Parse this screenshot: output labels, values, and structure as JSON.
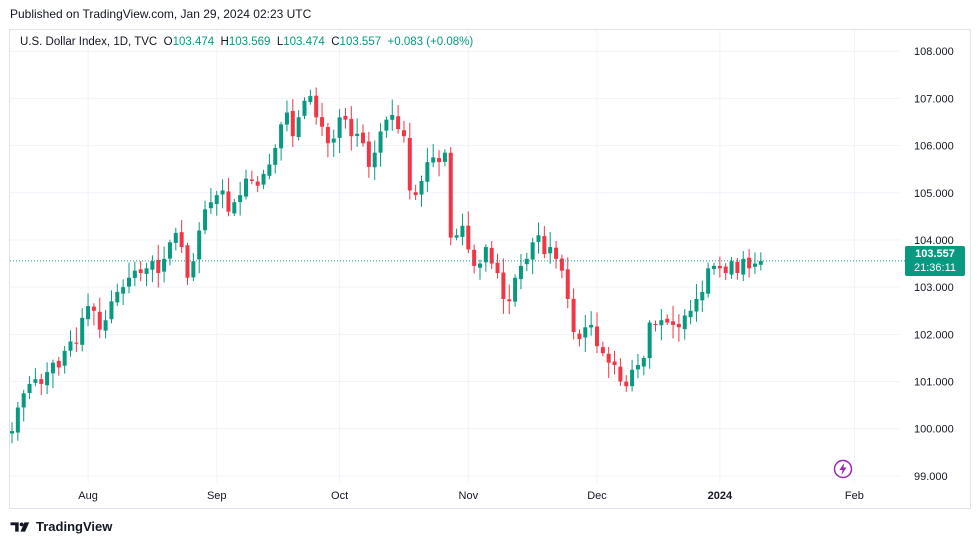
{
  "published": "Published on TradingView.com, Jan 29, 2024 02:23 UTC",
  "legend": {
    "symbol": "U.S. Dollar Index, 1D, TVC",
    "o_label": "O",
    "o_value": "103.474",
    "h_label": "H",
    "h_value": "103.569",
    "l_label": "L",
    "l_value": "103.474",
    "c_label": "C",
    "c_value": "103.557",
    "change": "+0.083 (+0.08%)"
  },
  "price_tag": {
    "price": "103.557",
    "countdown": "21:36:11"
  },
  "brand": "TradingView",
  "colors": {
    "up": "#089981",
    "down": "#f23645",
    "grid": "#f0f3fa",
    "text": "#131722",
    "flash": "#9c27b0"
  },
  "chart_data": {
    "type": "candlestick",
    "title": "U.S. Dollar Index, 1D, TVC",
    "ylim": [
      98.85,
      108.45
    ],
    "y_ticks": [
      "108.000",
      "107.000",
      "106.000",
      "105.000",
      "104.000",
      "103.000",
      "102.000",
      "101.000",
      "100.000",
      "99.000"
    ],
    "x_ticks": [
      {
        "label": "Aug",
        "index": 13
      },
      {
        "label": "Sep",
        "index": 35
      },
      {
        "label": "Oct",
        "index": 56
      },
      {
        "label": "Nov",
        "index": 78
      },
      {
        "label": "Dec",
        "index": 100
      },
      {
        "label": "2024",
        "index": 121
      },
      {
        "label": "Feb",
        "index": 144
      }
    ],
    "last_price": 103.557,
    "closes": [
      99.95,
      100.45,
      100.75,
      100.95,
      101.05,
      100.95,
      101.2,
      101.4,
      101.3,
      101.65,
      101.85,
      101.8,
      102.35,
      102.6,
      102.5,
      102.1,
      102.3,
      102.7,
      102.9,
      103.0,
      103.2,
      103.35,
      103.3,
      103.4,
      103.55,
      103.3,
      103.6,
      103.95,
      104.15,
      103.85,
      103.2,
      103.55,
      104.2,
      104.65,
      104.8,
      104.95,
      105.05,
      104.6,
      104.8,
      104.95,
      105.3,
      105.25,
      105.15,
      105.4,
      105.6,
      105.95,
      106.45,
      106.7,
      106.2,
      106.6,
      106.95,
      107.05,
      106.6,
      106.4,
      106.05,
      106.15,
      106.6,
      106.55,
      106.2,
      106.25,
      106.05,
      105.55,
      105.85,
      106.3,
      106.55,
      106.65,
      106.35,
      106.2,
      105.05,
      104.95,
      105.25,
      105.65,
      105.75,
      105.65,
      105.85,
      104.05,
      104.1,
      104.3,
      103.8,
      103.45,
      103.5,
      103.85,
      103.5,
      103.3,
      102.75,
      102.7,
      103.2,
      103.45,
      103.6,
      103.95,
      104.1,
      103.7,
      103.85,
      103.6,
      103.35,
      102.75,
      102.05,
      101.9,
      102.15,
      102.2,
      101.75,
      101.6,
      101.4,
      101.35,
      101.0,
      100.9,
      101.25,
      101.35,
      101.5,
      102.25,
      102.2,
      102.3,
      102.25,
      102.2,
      102.15,
      102.4,
      102.5,
      102.75,
      102.9,
      103.4,
      103.45,
      103.4,
      103.3,
      103.55,
      103.3,
      103.6,
      103.4,
      103.5,
      103.557
    ]
  }
}
